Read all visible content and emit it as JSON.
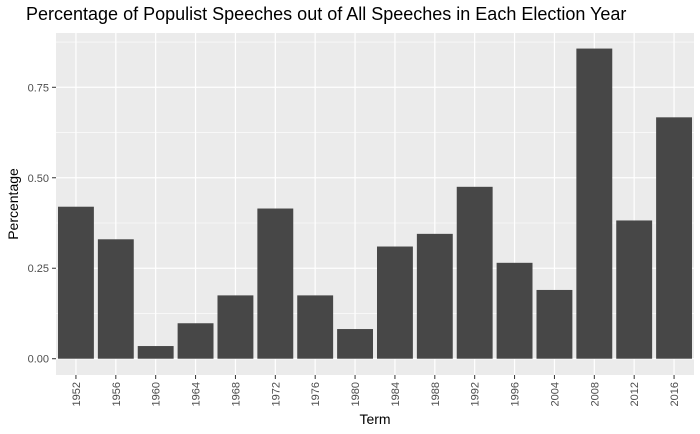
{
  "chart_data": {
    "type": "bar",
    "title": "Percentage of Populist Speeches out of All Speeches in Each Election Year",
    "xlabel": "Term",
    "ylabel": "Percentage",
    "categories": [
      "1952",
      "1956",
      "1960",
      "1964",
      "1968",
      "1972",
      "1976",
      "1980",
      "1984",
      "1988",
      "1992",
      "1996",
      "2004",
      "2008",
      "2012",
      "2016"
    ],
    "values": [
      0.42,
      0.33,
      0.035,
      0.098,
      0.175,
      0.415,
      0.175,
      0.082,
      0.31,
      0.345,
      0.475,
      0.265,
      0.19,
      0.857,
      0.382,
      0.667
    ],
    "y_ticks": [
      0,
      0.25,
      0.5,
      0.75
    ],
    "y_tick_labels": [
      "0.00",
      "0.25",
      "0.50",
      "0.75"
    ],
    "ylim": [
      -0.045,
      0.9
    ],
    "grid": true,
    "bar_color": "#474747",
    "panel_color": "#ebebeb",
    "grid_color": "#ffffff"
  }
}
